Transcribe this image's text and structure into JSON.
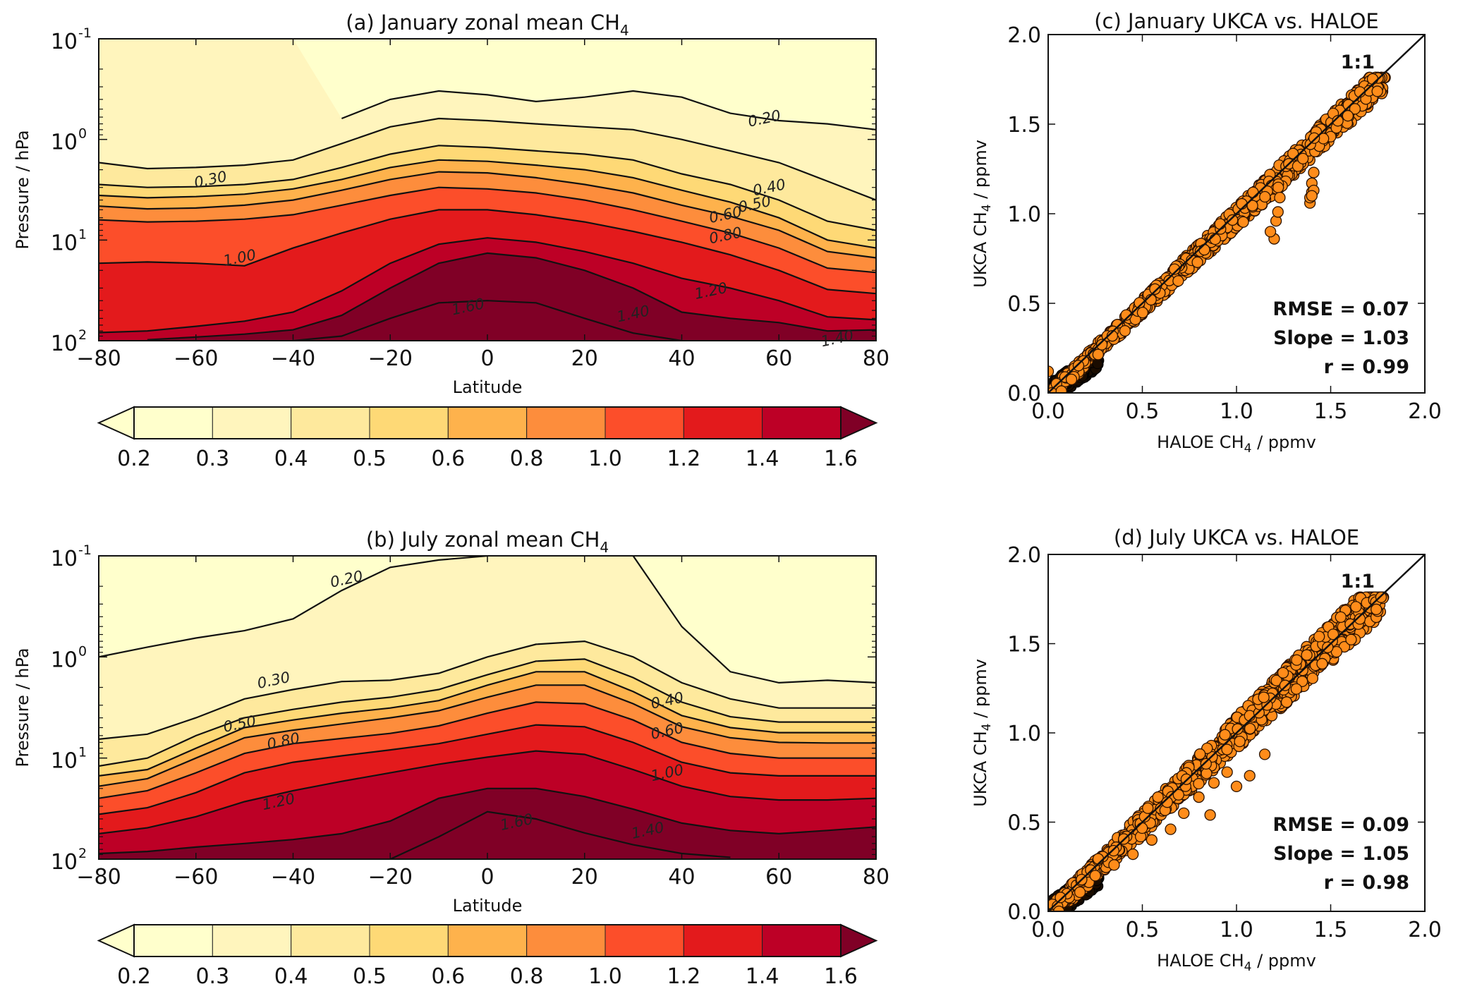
{
  "figure": {
    "colormap_levels": [
      0.2,
      0.3,
      0.4,
      0.5,
      0.6,
      0.8,
      1.0,
      1.2,
      1.4,
      1.6
    ],
    "colormap_colors": [
      "#ffffcc",
      "#fff5bd",
      "#fee99d",
      "#fed976",
      "#feb24c",
      "#fd8d3c",
      "#fc4e2a",
      "#e31a1c",
      "#bd0026",
      "#800026"
    ],
    "under_color": "#ffffcc",
    "over_color": "#800026",
    "scatter_color": "#ff8c1a"
  },
  "chart_data": [
    {
      "id": "a",
      "type": "heatmap",
      "subtype": "filled-contour",
      "title": "(a) January zonal mean CH",
      "title_sub": "4",
      "xlabel": "Latitude",
      "ylabel": "Pressure / hPa",
      "xlim": [
        -80,
        80
      ],
      "ylim": [
        100,
        0.1
      ],
      "yscale": "log",
      "xticks": [
        "−80",
        "−60",
        "−40",
        "−20",
        "0",
        "20",
        "40",
        "60",
        "80"
      ],
      "yticks": [
        {
          "base": "10",
          "exp": "-1"
        },
        {
          "base": "10",
          "exp": "0"
        },
        {
          "base": "10",
          "exp": "1"
        },
        {
          "base": "10",
          "exp": "2"
        }
      ],
      "contour_levels": [
        0.2,
        0.3,
        0.4,
        0.5,
        0.6,
        0.8,
        1.0,
        1.2,
        1.4,
        1.6
      ],
      "contour_labels": [
        {
          "text": "0.20",
          "lat": 57,
          "p": 0.62
        },
        {
          "text": "0.30",
          "lat": -57,
          "p": 2.5
        },
        {
          "text": "0.40",
          "lat": 58,
          "p": 3.0
        },
        {
          "text": "0.50",
          "lat": 55,
          "p": 4.4
        },
        {
          "text": "0.60",
          "lat": 49,
          "p": 5.6
        },
        {
          "text": "0.80",
          "lat": 49,
          "p": 9.0
        },
        {
          "text": "1.00",
          "lat": -51,
          "p": 15
        },
        {
          "text": "1.20",
          "lat": 46,
          "p": 32
        },
        {
          "text": "1.40",
          "lat": 30,
          "p": 54
        },
        {
          "text": "1.60",
          "lat": -4,
          "p": 46
        },
        {
          "text": "1.40",
          "lat": 72,
          "p": 95
        }
      ],
      "isolines_lat": [
        -80,
        -70,
        -60,
        -50,
        -40,
        -30,
        -20,
        -10,
        0,
        10,
        20,
        30,
        40,
        50,
        60,
        70,
        80
      ],
      "isolines": [
        {
          "level": 0.2,
          "p": [
            null,
            null,
            null,
            null,
            null,
            0.62,
            0.4,
            0.33,
            0.36,
            0.42,
            0.38,
            0.33,
            0.38,
            0.55,
            0.65,
            0.7,
            0.8
          ]
        },
        {
          "level": 0.3,
          "p": [
            1.7,
            1.95,
            1.9,
            1.8,
            1.6,
            1.1,
            0.75,
            0.62,
            0.65,
            0.7,
            0.75,
            0.8,
            1.0,
            1.3,
            1.7,
            2.6,
            4.0
          ]
        },
        {
          "level": 0.4,
          "p": [
            2.8,
            3.0,
            2.95,
            2.8,
            2.5,
            1.9,
            1.4,
            1.15,
            1.2,
            1.3,
            1.4,
            1.6,
            2.2,
            2.8,
            4.0,
            6.5,
            8.0
          ]
        },
        {
          "level": 0.5,
          "p": [
            3.6,
            3.8,
            3.7,
            3.5,
            3.1,
            2.5,
            1.9,
            1.6,
            1.65,
            1.8,
            2.0,
            2.4,
            3.2,
            4.2,
            6.0,
            10,
            12
          ]
        },
        {
          "level": 0.6,
          "p": [
            4.6,
            4.9,
            4.8,
            4.5,
            4.0,
            3.2,
            2.5,
            2.1,
            2.15,
            2.4,
            2.8,
            3.4,
            4.5,
            5.8,
            8.0,
            13,
            15
          ]
        },
        {
          "level": 0.8,
          "p": [
            6.3,
            6.6,
            6.5,
            6.2,
            5.6,
            4.5,
            3.6,
            3.0,
            3.1,
            3.4,
            4.0,
            5.0,
            6.5,
            8.5,
            12,
            19,
            21
          ]
        },
        {
          "level": 1.0,
          "p": [
            17,
            16.5,
            17,
            18,
            12,
            8.5,
            6.2,
            5.0,
            5.0,
            5.6,
            6.6,
            8.2,
            10.5,
            14,
            20,
            31,
            34
          ]
        },
        {
          "level": 1.2,
          "p": [
            83,
            80,
            72,
            64,
            52,
            32,
            17,
            11,
            9.5,
            10.5,
            13,
            17,
            24,
            30,
            40,
            58,
            62
          ]
        },
        {
          "level": 1.4,
          "p": [
            null,
            98,
            92,
            86,
            78,
            56,
            30,
            17,
            13.5,
            15,
            20,
            30,
            52,
            60,
            66,
            80,
            78
          ]
        },
        {
          "level": 1.6,
          "p": [
            null,
            null,
            null,
            null,
            100,
            90,
            60,
            42,
            40,
            42,
            60,
            84,
            100,
            null,
            null,
            null,
            null
          ]
        }
      ]
    },
    {
      "id": "b",
      "type": "heatmap",
      "subtype": "filled-contour",
      "title": "(b) July zonal mean CH",
      "title_sub": "4",
      "xlabel": "Latitude",
      "ylabel": "Pressure / hPa",
      "xlim": [
        -80,
        80
      ],
      "ylim": [
        100,
        0.1
      ],
      "yscale": "log",
      "xticks": [
        "−80",
        "−60",
        "−40",
        "−20",
        "0",
        "20",
        "40",
        "60",
        "80"
      ],
      "yticks": [
        {
          "base": "10",
          "exp": "-1"
        },
        {
          "base": "10",
          "exp": "0"
        },
        {
          "base": "10",
          "exp": "1"
        },
        {
          "base": "10",
          "exp": "2"
        }
      ],
      "contour_levels": [
        0.2,
        0.3,
        0.4,
        0.5,
        0.6,
        0.8,
        1.0,
        1.2,
        1.4,
        1.6
      ],
      "contour_labels": [
        {
          "text": "0.20",
          "lat": -29,
          "p": 0.17
        },
        {
          "text": "0.30",
          "lat": -44,
          "p": 1.7
        },
        {
          "text": "0.40",
          "lat": 37,
          "p": 2.7
        },
        {
          "text": "0.50",
          "lat": -51,
          "p": 4.6
        },
        {
          "text": "0.60",
          "lat": 37,
          "p": 5.4
        },
        {
          "text": "0.80",
          "lat": -42,
          "p": 6.8
        },
        {
          "text": "1.00",
          "lat": 37,
          "p": 14
        },
        {
          "text": "1.20",
          "lat": -43,
          "p": 27
        },
        {
          "text": "1.40",
          "lat": 33,
          "p": 52
        },
        {
          "text": "1.60",
          "lat": 6,
          "p": 43
        }
      ],
      "isolines_lat": [
        -80,
        -70,
        -60,
        -50,
        -40,
        -30,
        -20,
        -10,
        0,
        10,
        20,
        30,
        40,
        50,
        60,
        70,
        80
      ],
      "isolines": [
        {
          "level": 0.2,
          "p": [
            1.0,
            0.8,
            0.65,
            0.55,
            0.42,
            0.22,
            0.13,
            0.11,
            0.1,
            null,
            null,
            0.1,
            0.5,
            1.4,
            1.8,
            1.7,
            1.8
          ]
        },
        {
          "level": 0.3,
          "p": [
            6.5,
            5.8,
            4.0,
            2.6,
            2.1,
            1.75,
            1.7,
            1.45,
            1.0,
            0.75,
            0.7,
            1.0,
            1.8,
            2.6,
            3.2,
            3.2,
            3.2
          ]
        },
        {
          "level": 0.4,
          "p": [
            12,
            10,
            6.0,
            4.0,
            3.3,
            2.8,
            2.5,
            2.1,
            1.5,
            1.1,
            1.05,
            1.6,
            2.8,
            3.9,
            4.4,
            4.4,
            4.4
          ]
        },
        {
          "level": 0.5,
          "p": [
            15,
            13,
            8.0,
            5.0,
            4.2,
            3.6,
            3.2,
            2.7,
            1.9,
            1.4,
            1.4,
            2.2,
            3.8,
            5.0,
            5.6,
            5.6,
            5.6
          ]
        },
        {
          "level": 0.6,
          "p": [
            19,
            16,
            10,
            6.3,
            5.3,
            4.6,
            4.0,
            3.4,
            2.5,
            1.9,
            1.9,
            2.9,
            4.9,
            6.3,
            7.0,
            7.1,
            7.1
          ]
        },
        {
          "level": 0.8,
          "p": [
            25,
            21,
            14,
            9.0,
            7.2,
            6.4,
            5.7,
            4.8,
            3.6,
            2.8,
            2.9,
            4.2,
            7.0,
            9.0,
            10,
            10,
            10
          ]
        },
        {
          "level": 1.0,
          "p": [
            36,
            31,
            22,
            14,
            11,
            9.5,
            8.3,
            7.2,
            5.8,
            4.7,
            4.9,
            7.0,
            11,
            14,
            15,
            15,
            15
          ]
        },
        {
          "level": 1.2,
          "p": [
            56,
            49,
            38,
            27,
            21,
            17,
            14,
            11.5,
            9.8,
            8.5,
            9.2,
            13,
            19,
            24,
            26,
            26,
            25
          ]
        },
        {
          "level": 1.4,
          "p": [
            88,
            84,
            76,
            70,
            64,
            56,
            42,
            25,
            20,
            20,
            24,
            32,
            44,
            52,
            56,
            52,
            48
          ]
        },
        {
          "level": 1.6,
          "p": [
            null,
            null,
            null,
            null,
            null,
            null,
            100,
            60,
            34,
            40,
            55,
            72,
            88,
            96,
            null,
            null,
            null
          ]
        }
      ]
    },
    {
      "id": "c",
      "type": "scatter",
      "title": "(c) January UKCA vs. HALOE",
      "xlabel": "HALOE CH",
      "xlabel_sub": "4",
      "xlabel_unit": " / ppmv",
      "ylabel": "UKCA CH",
      "ylabel_sub": "4",
      "ylabel_unit": " / ppmv",
      "xlim": [
        0.0,
        2.0
      ],
      "ylim": [
        0.0,
        2.0
      ],
      "xticks": [
        "0.0",
        "0.5",
        "1.0",
        "1.5",
        "2.0"
      ],
      "yticks": [
        "0.0",
        "0.5",
        "1.0",
        "1.5",
        "2.0"
      ],
      "reference_line": "1:1",
      "stats": [
        "RMSE = 0.07",
        "Slope = 1.03",
        "r = 0.99"
      ],
      "trend": {
        "slope": 1.03,
        "spread": 0.06,
        "x_range": [
          0.02,
          1.79
        ],
        "n": 900
      },
      "outlier_series": [
        {
          "x": [
            1.39,
            1.39,
            1.4,
            1.4,
            1.41,
            1.41,
            1.4
          ],
          "y": [
            1.06,
            1.09,
            1.12,
            1.17,
            1.23,
            1.13,
            1.1
          ]
        },
        {
          "x": [
            1.2,
            1.18,
            1.21,
            1.22,
            1.23
          ],
          "y": [
            0.86,
            0.9,
            0.96,
            1.01,
            1.09
          ]
        },
        {
          "x": [
            0.0,
            0.07
          ],
          "y": [
            0.12,
            0.01
          ]
        }
      ]
    },
    {
      "id": "d",
      "type": "scatter",
      "title": "(d) July UKCA vs. HALOE",
      "xlabel": "HALOE CH",
      "xlabel_sub": "4",
      "xlabel_unit": " / ppmv",
      "ylabel": "UKCA CH",
      "ylabel_sub": "4",
      "ylabel_unit": " / ppmv",
      "xlim": [
        0.0,
        2.0
      ],
      "ylim": [
        0.0,
        2.0
      ],
      "xticks": [
        "0.0",
        "0.5",
        "1.0",
        "1.5",
        "2.0"
      ],
      "yticks": [
        "0.0",
        "0.5",
        "1.0",
        "1.5",
        "2.0"
      ],
      "reference_line": "1:1",
      "stats": [
        "RMSE = 0.09",
        "Slope = 1.05",
        "r = 0.98"
      ],
      "trend": {
        "slope": 1.05,
        "spread": 0.09,
        "x_range": [
          0.02,
          1.78
        ],
        "n": 900
      },
      "outlier_series": [
        {
          "x": [
            0.25,
            0.35,
            0.45,
            0.55,
            0.65,
            0.72,
            0.8,
            0.88,
            0.95,
            1.0
          ],
          "y": [
            0.2,
            0.26,
            0.32,
            0.4,
            0.46,
            0.55,
            0.64,
            0.72,
            0.78,
            0.7
          ]
        },
        {
          "x": [
            1.07,
            1.15,
            0.86
          ],
          "y": [
            0.76,
            0.88,
            0.54
          ]
        }
      ]
    }
  ],
  "colorbars": [
    {
      "id": "a",
      "ticks": [
        "0.2",
        "0.3",
        "0.4",
        "0.5",
        "0.6",
        "0.8",
        "1.0",
        "1.2",
        "1.4",
        "1.6"
      ],
      "extend": "both"
    },
    {
      "id": "b",
      "ticks": [
        "0.2",
        "0.3",
        "0.4",
        "0.5",
        "0.6",
        "0.8",
        "1.0",
        "1.2",
        "1.4",
        "1.6"
      ],
      "extend": "both"
    }
  ]
}
